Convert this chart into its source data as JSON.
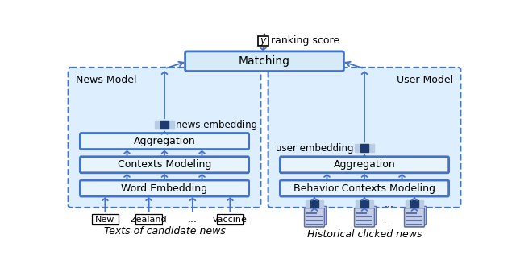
{
  "fig_width": 6.4,
  "fig_height": 3.27,
  "dpi": 100,
  "bg_color": "#ffffff",
  "blue": "#4472C4",
  "dark_blue": "#1e3a6e",
  "light_blue": "#b8cce4",
  "mid_blue": "#2e5fa3",
  "dash_fill": "#ddeeff",
  "box_fill": "#ffffff",
  "box_fill_light": "#e8f4fb",
  "match_fill": "#d6eaf8",
  "arrow_color": "#4472C4",
  "doc_fill": "#c5cfe8",
  "doc_line": "#6070a0",
  "doc_edge": "#6070a0",
  "news_blocks": [
    "Word Embedding",
    "Contexts Modeling",
    "Aggregation"
  ],
  "user_blocks": [
    "Behavior Contexts Modeling",
    "Aggregation"
  ],
  "word_tokens": [
    "New",
    "Zealand",
    "vaccine"
  ],
  "caption_left": "Texts of candidate news",
  "caption_right": "Historical clicked news",
  "label_news_model": "News Model",
  "label_news_emb": "news embedding",
  "label_user_emb": "user embedding",
  "label_user_model": "User Model",
  "label_matching": "Matching",
  "label_ranking": "ranking score"
}
